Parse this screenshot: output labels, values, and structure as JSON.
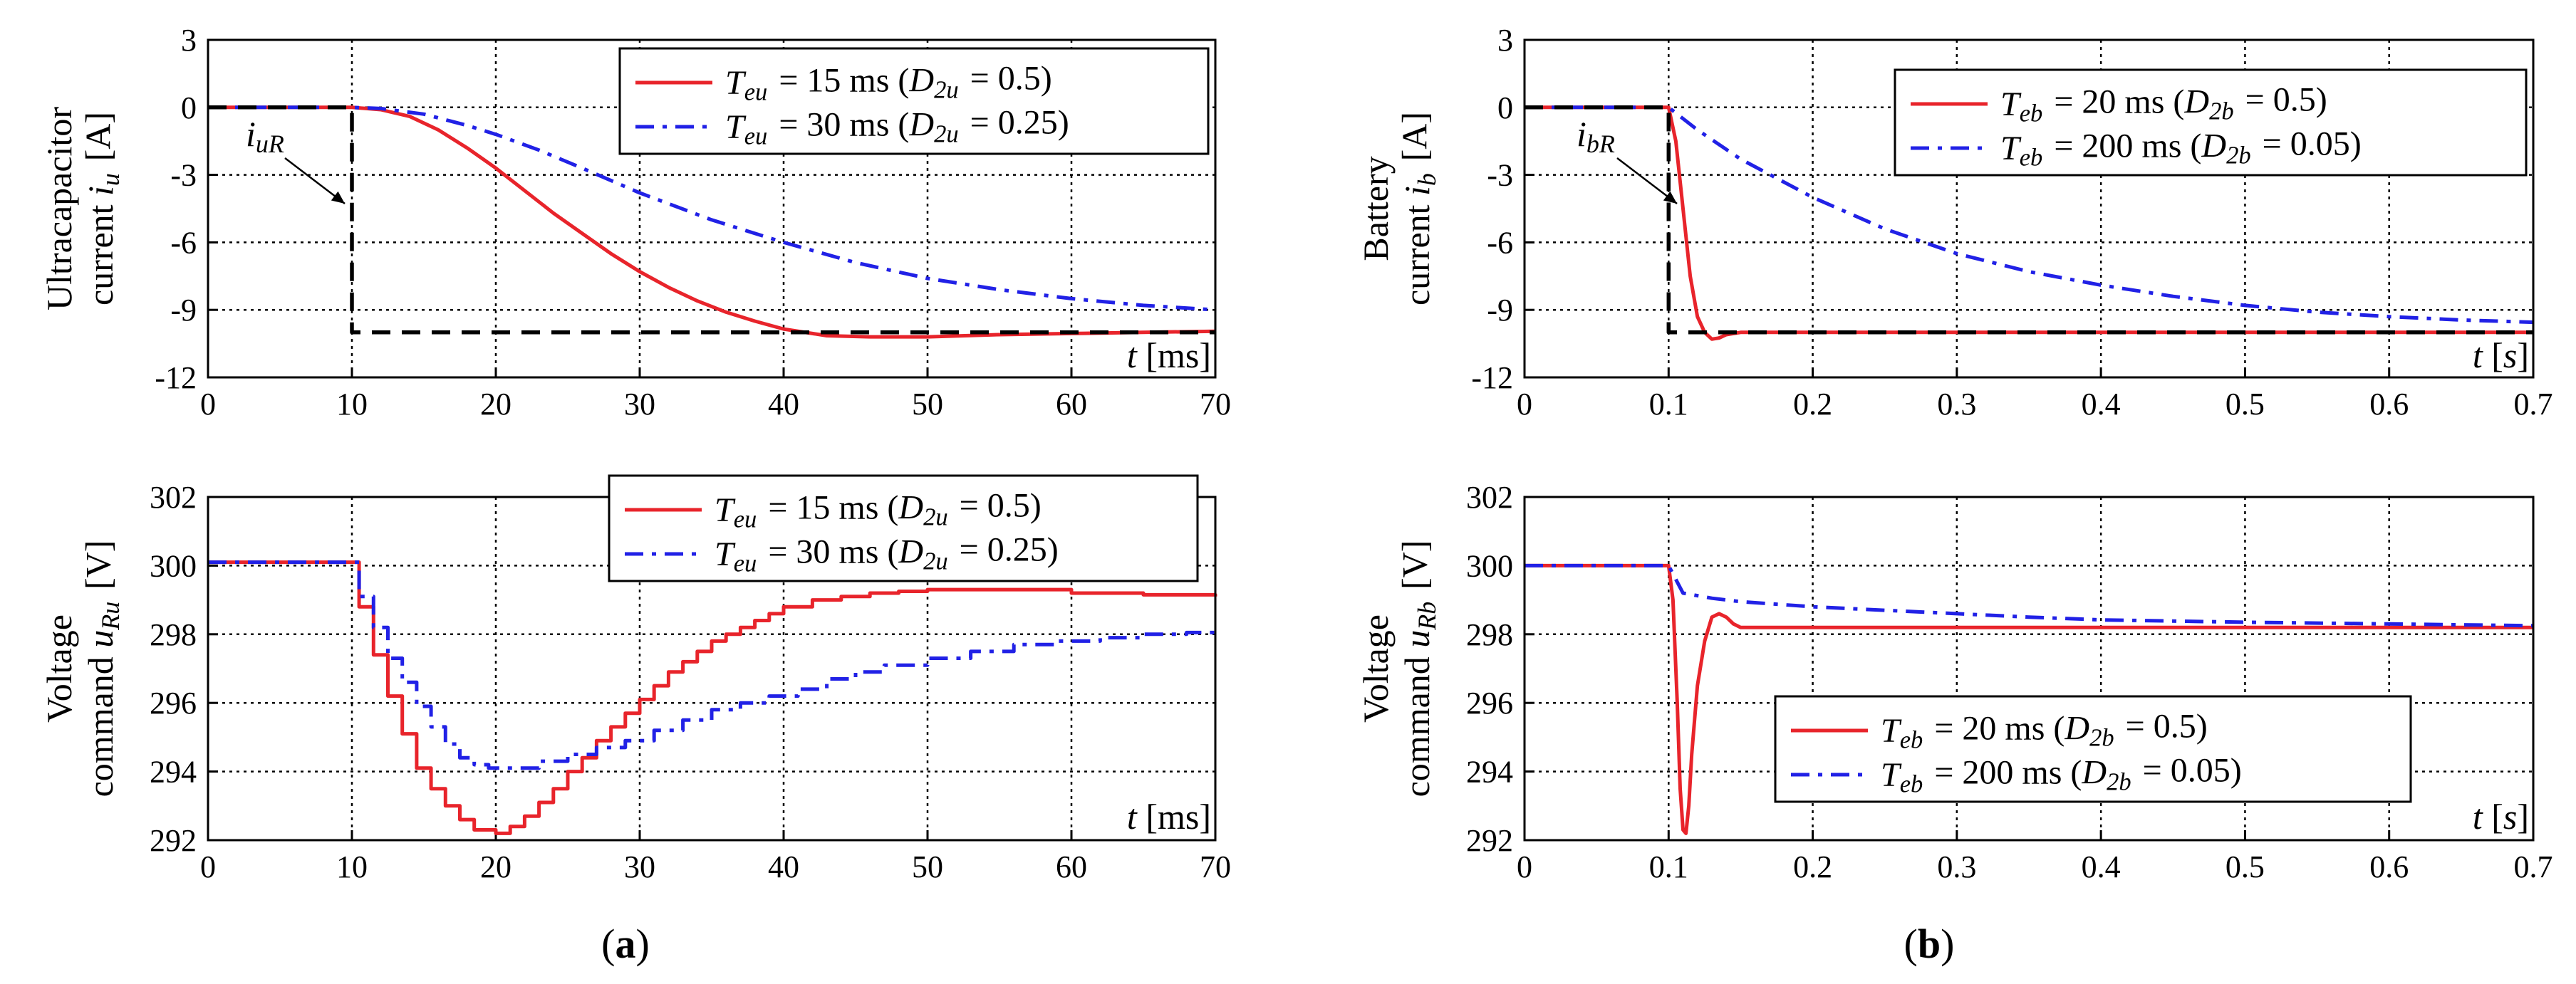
{
  "colors": {
    "red": "#e8242b",
    "blue": "#2121e6",
    "ref": "#000000",
    "grid": "#000000"
  },
  "captions": {
    "a": "(a)",
    "b": "(b)"
  },
  "chart_data": [
    {
      "id": "a-current",
      "type": "line",
      "ylabel": [
        "Ultracapacitor",
        "current i_u [A]"
      ],
      "xlabel_text": "t [ms]",
      "xlim": [
        0,
        70
      ],
      "ylim": [
        -12,
        3
      ],
      "xticks": [
        0,
        10,
        20,
        30,
        40,
        50,
        60,
        70
      ],
      "yticks": [
        3,
        0,
        -3,
        -6,
        -9,
        -12
      ],
      "xtick_labels": [
        "0",
        "10",
        "20",
        "30",
        "40",
        "50",
        "60",
        "70"
      ],
      "ytick_labels": [
        "3",
        "0",
        "-3",
        "-6",
        "-9",
        "-12"
      ],
      "legend": {
        "position": "top-right",
        "entries": [
          "T_eu = 15 ms (D_2u = 0.5)",
          "T_eu = 30 ms (D_2u = 0.25)"
        ]
      },
      "annotation": "i_uR",
      "series": [
        {
          "name": "T_eu = 15 ms (D_2u = 0.5)",
          "color": "red",
          "style": "solid",
          "x": [
            0,
            10,
            12,
            14,
            16,
            18,
            20,
            22,
            24,
            26,
            28,
            30,
            32,
            34,
            36,
            38,
            40,
            43,
            46,
            50,
            55,
            60,
            65,
            70
          ],
          "y": [
            0,
            0,
            -0.1,
            -0.4,
            -1.0,
            -1.8,
            -2.7,
            -3.7,
            -4.7,
            -5.6,
            -6.5,
            -7.3,
            -8.0,
            -8.6,
            -9.1,
            -9.5,
            -9.85,
            -10.15,
            -10.2,
            -10.2,
            -10.1,
            -10.05,
            -10.0,
            -9.95
          ]
        },
        {
          "name": "T_eu = 30 ms (D_2u = 0.25)",
          "color": "blue",
          "style": "dashdot",
          "x": [
            0,
            10,
            12,
            15,
            18,
            20,
            23,
            26,
            30,
            35,
            40,
            45,
            50,
            55,
            60,
            65,
            70
          ],
          "y": [
            0,
            0,
            -0.05,
            -0.3,
            -0.8,
            -1.2,
            -1.9,
            -2.7,
            -3.8,
            -5.0,
            -6.0,
            -6.9,
            -7.6,
            -8.1,
            -8.5,
            -8.8,
            -9.0
          ]
        },
        {
          "name": "",
          "color": "ref",
          "style": "dashed",
          "x": [
            0,
            10,
            10,
            70
          ],
          "y": [
            0,
            0,
            -10,
            -10
          ]
        }
      ]
    },
    {
      "id": "b-current",
      "type": "line",
      "ylabel": [
        "Battery",
        "current i_b [A]"
      ],
      "xlabel_text": "t [s]",
      "xlim": [
        0,
        0.7
      ],
      "ylim": [
        -12,
        3
      ],
      "xticks": [
        0,
        0.1,
        0.2,
        0.3,
        0.4,
        0.5,
        0.6,
        0.7
      ],
      "yticks": [
        3,
        0,
        -3,
        -6,
        -9,
        -12
      ],
      "xtick_labels": [
        "0",
        "0.1",
        "0.2",
        "0.3",
        "0.4",
        "0.5",
        "0.6",
        "0.7"
      ],
      "ytick_labels": [
        "3",
        "0",
        "-3",
        "-6",
        "-9",
        "-12"
      ],
      "legend": {
        "position": "top-right",
        "entries": [
          "T_eb = 20 ms (D_2b = 0.5)",
          "T_eb = 200 ms (D_2b = 0.05)"
        ]
      },
      "annotation": "i_bR",
      "series": [
        {
          "name": "T_eb = 20 ms (D_2b = 0.5)",
          "color": "red",
          "style": "solid",
          "x": [
            0,
            0.1,
            0.105,
            0.11,
            0.115,
            0.12,
            0.125,
            0.13,
            0.135,
            0.14,
            0.15,
            0.16,
            0.2,
            0.7
          ],
          "y": [
            0,
            0,
            -1.5,
            -4.5,
            -7.5,
            -9.3,
            -10.0,
            -10.3,
            -10.25,
            -10.1,
            -10.0,
            -10.0,
            -10.0,
            -10.0
          ]
        },
        {
          "name": "T_eb = 200 ms (D_2b = 0.05)",
          "color": "blue",
          "style": "dashdot",
          "x": [
            0,
            0.1,
            0.12,
            0.15,
            0.2,
            0.25,
            0.3,
            0.35,
            0.4,
            0.45,
            0.5,
            0.55,
            0.6,
            0.65,
            0.7
          ],
          "y": [
            0,
            0,
            -1.0,
            -2.3,
            -4.0,
            -5.4,
            -6.5,
            -7.3,
            -7.9,
            -8.4,
            -8.8,
            -9.1,
            -9.3,
            -9.45,
            -9.55
          ]
        },
        {
          "name": "",
          "color": "ref",
          "style": "dashed",
          "x": [
            0,
            0.1,
            0.1,
            0.7
          ],
          "y": [
            0,
            0,
            -10,
            -10
          ]
        }
      ]
    },
    {
      "id": "a-voltage",
      "type": "line",
      "ylabel": [
        "Voltage",
        "command u_Ru [V]"
      ],
      "xlabel_text": "t [ms]",
      "xlim": [
        0,
        70
      ],
      "ylim": [
        292,
        302
      ],
      "xticks": [
        0,
        10,
        20,
        30,
        40,
        50,
        60,
        70
      ],
      "yticks": [
        302,
        300,
        298,
        296,
        294,
        292
      ],
      "xtick_labels": [
        "0",
        "10",
        "20",
        "30",
        "40",
        "50",
        "60",
        "70"
      ],
      "ytick_labels": [
        "302",
        "300",
        "298",
        "296",
        "294",
        "292"
      ],
      "legend": {
        "position": "top-right",
        "entries": [
          "T_eu = 15 ms (D_2u = 0.5)",
          "T_eu = 30 ms (D_2u = 0.25)"
        ]
      },
      "series": [
        {
          "name": "T_eu = 15 ms (D_2u = 0.5)",
          "color": "red",
          "style": "solid",
          "step": true,
          "x": [
            0,
            10,
            10.5,
            11.5,
            12.5,
            13.5,
            14.5,
            15.5,
            16.5,
            17.5,
            18.5,
            20,
            21,
            22,
            23,
            24,
            25,
            26,
            27,
            28,
            29,
            30,
            31,
            32,
            33,
            34,
            35,
            36,
            37,
            38,
            39,
            40,
            42,
            44,
            46,
            48,
            50,
            55,
            60,
            65,
            70
          ],
          "y": [
            300.1,
            300.1,
            298.8,
            297.4,
            296.2,
            295.1,
            294.1,
            293.5,
            293.0,
            292.6,
            292.3,
            292.2,
            292.4,
            292.7,
            293.1,
            293.5,
            294.0,
            294.4,
            294.9,
            295.3,
            295.7,
            296.1,
            296.5,
            296.9,
            297.2,
            297.5,
            297.8,
            298.0,
            298.2,
            298.4,
            298.6,
            298.8,
            299.0,
            299.1,
            299.2,
            299.25,
            299.3,
            299.3,
            299.2,
            299.15,
            299.1
          ]
        },
        {
          "name": "T_eu = 30 ms (D_2u = 0.25)",
          "color": "blue",
          "style": "dashdot",
          "step": true,
          "x": [
            0,
            10,
            10.5,
            11.5,
            12.5,
            13.5,
            14.5,
            15.5,
            16.5,
            17.5,
            18.5,
            19.5,
            21,
            23,
            25,
            27,
            29,
            31,
            33,
            35,
            37,
            39,
            41,
            43,
            45,
            47,
            50,
            53,
            56,
            59,
            62,
            65,
            68,
            70
          ],
          "y": [
            300.1,
            300.1,
            299.1,
            298.2,
            297.3,
            296.6,
            295.9,
            295.3,
            294.8,
            294.4,
            294.2,
            294.1,
            294.1,
            294.3,
            294.5,
            294.7,
            294.9,
            295.2,
            295.5,
            295.8,
            296.0,
            296.2,
            296.4,
            296.7,
            296.9,
            297.1,
            297.3,
            297.5,
            297.7,
            297.8,
            297.9,
            298.0,
            298.05,
            298.1
          ]
        }
      ]
    },
    {
      "id": "b-voltage",
      "type": "line",
      "ylabel": [
        "Voltage",
        "command u_Rb [V]"
      ],
      "xlabel_text": "t [s]",
      "xlim": [
        0,
        0.7
      ],
      "ylim": [
        292,
        302
      ],
      "xticks": [
        0,
        0.1,
        0.2,
        0.3,
        0.4,
        0.5,
        0.6,
        0.7
      ],
      "yticks": [
        302,
        300,
        298,
        296,
        294,
        292
      ],
      "xtick_labels": [
        "0",
        "0.1",
        "0.2",
        "0.3",
        "0.4",
        "0.5",
        "0.6",
        "0.7"
      ],
      "ytick_labels": [
        "302",
        "300",
        "298",
        "296",
        "294",
        "292"
      ],
      "legend": {
        "position": "bottom-right",
        "entries": [
          "T_eb = 20 ms (D_2b = 0.5)",
          "T_eb = 200 ms (D_2b = 0.05)"
        ]
      },
      "series": [
        {
          "name": "T_eb = 20 ms (D_2b = 0.5)",
          "color": "red",
          "style": "solid",
          "x": [
            0,
            0.1,
            0.103,
            0.106,
            0.108,
            0.11,
            0.112,
            0.114,
            0.116,
            0.12,
            0.125,
            0.13,
            0.135,
            0.14,
            0.145,
            0.15,
            0.16,
            0.2,
            0.7
          ],
          "y": [
            300.0,
            300.0,
            299.0,
            296.0,
            293.5,
            292.3,
            292.2,
            293.0,
            294.5,
            296.5,
            297.8,
            298.5,
            298.6,
            298.5,
            298.3,
            298.2,
            298.2,
            298.2,
            298.2
          ]
        },
        {
          "name": "T_eb = 200 ms (D_2b = 0.05)",
          "color": "blue",
          "style": "dashdot",
          "x": [
            0,
            0.1,
            0.105,
            0.11,
            0.13,
            0.15,
            0.2,
            0.25,
            0.3,
            0.35,
            0.4,
            0.5,
            0.6,
            0.7
          ],
          "y": [
            300.0,
            300.0,
            299.6,
            299.2,
            299.05,
            298.95,
            298.8,
            298.7,
            298.6,
            298.5,
            298.42,
            298.35,
            298.3,
            298.25
          ]
        }
      ]
    }
  ]
}
